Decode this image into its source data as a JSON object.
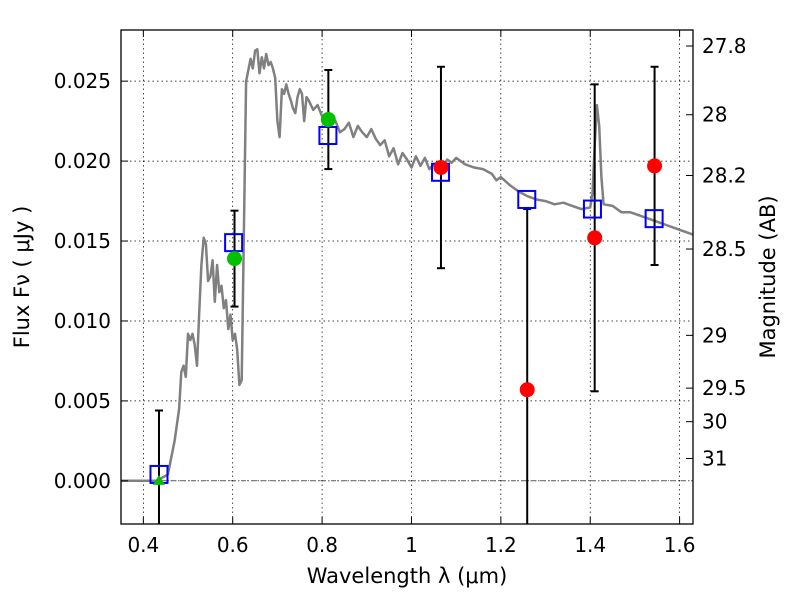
{
  "chart_data": {
    "type": "scatter",
    "xlabel": "Wavelength  λ (μm)",
    "ylabel": "Flux  Fν  ( μJy )",
    "y2label": "Magnitude (AB)",
    "xlim": [
      0.35,
      1.63
    ],
    "ylim": [
      -0.0027,
      0.0282
    ],
    "grid": true,
    "x_ticks": [
      {
        "value": 0.4,
        "label": "0.4"
      },
      {
        "value": 0.6,
        "label": "0.6"
      },
      {
        "value": 0.8,
        "label": "0.8"
      },
      {
        "value": 1.0,
        "label": "1"
      },
      {
        "value": 1.2,
        "label": "1.2"
      },
      {
        "value": 1.4,
        "label": "1.4"
      },
      {
        "value": 1.6,
        "label": "1.6"
      }
    ],
    "y_ticks": [
      {
        "value": 0.0,
        "label": "0.000"
      },
      {
        "value": 0.005,
        "label": "0.005"
      },
      {
        "value": 0.01,
        "label": "0.010"
      },
      {
        "value": 0.015,
        "label": "0.015"
      },
      {
        "value": 0.02,
        "label": "0.020"
      },
      {
        "value": 0.025,
        "label": "0.025"
      }
    ],
    "y2_ticks": [
      {
        "flux": 0.0272,
        "label": "27.8"
      },
      {
        "flux": 0.0229,
        "label": "28"
      },
      {
        "flux": 0.0191,
        "label": "28.2"
      },
      {
        "flux": 0.0145,
        "label": "28.5"
      },
      {
        "flux": 0.0091,
        "label": "29"
      },
      {
        "flux": 0.0058,
        "label": "29.5"
      },
      {
        "flux": 0.0037,
        "label": "30"
      },
      {
        "flux": 0.0014,
        "label": "31"
      }
    ],
    "zero_line": 0.0,
    "series": [
      {
        "kind": "model_spectrum",
        "color": "#808080",
        "points": [
          [
            0.35,
            0.0
          ],
          [
            0.43,
            0.0
          ],
          [
            0.455,
            0.0004
          ],
          [
            0.47,
            0.0025
          ],
          [
            0.48,
            0.0045
          ],
          [
            0.485,
            0.0068
          ],
          [
            0.49,
            0.0072
          ],
          [
            0.495,
            0.0065
          ],
          [
            0.5,
            0.0092
          ],
          [
            0.505,
            0.0088
          ],
          [
            0.51,
            0.0092
          ],
          [
            0.515,
            0.0085
          ],
          [
            0.52,
            0.0072
          ],
          [
            0.525,
            0.0105
          ],
          [
            0.53,
            0.0135
          ],
          [
            0.535,
            0.0152
          ],
          [
            0.54,
            0.0148
          ],
          [
            0.545,
            0.0125
          ],
          [
            0.55,
            0.0128
          ],
          [
            0.555,
            0.0138
          ],
          [
            0.56,
            0.0112
          ],
          [
            0.565,
            0.0135
          ],
          [
            0.57,
            0.0118
          ],
          [
            0.575,
            0.0122
          ],
          [
            0.58,
            0.0108
          ],
          [
            0.585,
            0.0113
          ],
          [
            0.59,
            0.0095
          ],
          [
            0.595,
            0.0104
          ],
          [
            0.6,
            0.0088
          ],
          [
            0.605,
            0.0092
          ],
          [
            0.61,
            0.0082
          ],
          [
            0.615,
            0.006
          ],
          [
            0.62,
            0.0063
          ],
          [
            0.63,
            0.025
          ],
          [
            0.64,
            0.0264
          ],
          [
            0.645,
            0.0258
          ],
          [
            0.65,
            0.0269
          ],
          [
            0.655,
            0.027
          ],
          [
            0.66,
            0.0255
          ],
          [
            0.665,
            0.0265
          ],
          [
            0.67,
            0.0258
          ],
          [
            0.675,
            0.0267
          ],
          [
            0.68,
            0.026
          ],
          [
            0.685,
            0.0262
          ],
          [
            0.69,
            0.0258
          ],
          [
            0.695,
            0.0252
          ],
          [
            0.7,
            0.0225
          ],
          [
            0.705,
            0.0215
          ],
          [
            0.71,
            0.0245
          ],
          [
            0.715,
            0.0242
          ],
          [
            0.72,
            0.0248
          ],
          [
            0.725,
            0.0242
          ],
          [
            0.73,
            0.0238
          ],
          [
            0.735,
            0.0233
          ],
          [
            0.74,
            0.023
          ],
          [
            0.745,
            0.024
          ],
          [
            0.75,
            0.0245
          ],
          [
            0.755,
            0.0242
          ],
          [
            0.76,
            0.0225
          ],
          [
            0.765,
            0.024
          ],
          [
            0.77,
            0.0238
          ],
          [
            0.78,
            0.0232
          ],
          [
            0.79,
            0.0235
          ],
          [
            0.8,
            0.0228
          ],
          [
            0.81,
            0.0226
          ],
          [
            0.82,
            0.0224
          ],
          [
            0.83,
            0.0225
          ],
          [
            0.84,
            0.0218
          ],
          [
            0.85,
            0.022
          ],
          [
            0.86,
            0.0224
          ],
          [
            0.87,
            0.0215
          ],
          [
            0.88,
            0.0222
          ],
          [
            0.89,
            0.0218
          ],
          [
            0.9,
            0.0215
          ],
          [
            0.91,
            0.022
          ],
          [
            0.92,
            0.0214
          ],
          [
            0.93,
            0.021
          ],
          [
            0.94,
            0.0213
          ],
          [
            0.95,
            0.0203
          ],
          [
            0.96,
            0.0208
          ],
          [
            0.97,
            0.0198
          ],
          [
            0.98,
            0.0205
          ],
          [
            0.99,
            0.0201
          ],
          [
            1.0,
            0.0196
          ],
          [
            1.01,
            0.0203
          ],
          [
            1.02,
            0.0197
          ],
          [
            1.03,
            0.0202
          ],
          [
            1.04,
            0.0195
          ],
          [
            1.05,
            0.0198
          ],
          [
            1.06,
            0.0199
          ],
          [
            1.07,
            0.0196
          ],
          [
            1.08,
            0.0201
          ],
          [
            1.09,
            0.0199
          ],
          [
            1.1,
            0.0202
          ],
          [
            1.12,
            0.0198
          ],
          [
            1.14,
            0.0196
          ],
          [
            1.16,
            0.0195
          ],
          [
            1.18,
            0.0192
          ],
          [
            1.19,
            0.0188
          ],
          [
            1.2,
            0.019
          ],
          [
            1.22,
            0.0185
          ],
          [
            1.24,
            0.0181
          ],
          [
            1.26,
            0.0178
          ],
          [
            1.28,
            0.0176
          ],
          [
            1.3,
            0.0175
          ],
          [
            1.32,
            0.0173
          ],
          [
            1.34,
            0.0174
          ],
          [
            1.36,
            0.0172
          ],
          [
            1.38,
            0.017
          ],
          [
            1.4,
            0.0171
          ],
          [
            1.405,
            0.018
          ],
          [
            1.41,
            0.021
          ],
          [
            1.415,
            0.0235
          ],
          [
            1.42,
            0.0222
          ],
          [
            1.425,
            0.019
          ],
          [
            1.43,
            0.0173
          ],
          [
            1.45,
            0.0172
          ],
          [
            1.47,
            0.0168
          ],
          [
            1.49,
            0.0168
          ],
          [
            1.51,
            0.0166
          ],
          [
            1.53,
            0.0164
          ],
          [
            1.55,
            0.0162
          ],
          [
            1.57,
            0.016
          ],
          [
            1.59,
            0.0158
          ],
          [
            1.61,
            0.0156
          ],
          [
            1.63,
            0.0154
          ]
        ]
      },
      {
        "kind": "model_fluxes",
        "marker": "open-square",
        "color": "#0000ff",
        "points": [
          [
            0.435,
            0.0004
          ],
          [
            0.602,
            0.0149
          ],
          [
            0.813,
            0.0216
          ],
          [
            1.065,
            0.0193
          ],
          [
            1.258,
            0.0176
          ],
          [
            1.405,
            0.017
          ],
          [
            1.543,
            0.0164
          ]
        ]
      },
      {
        "kind": "detections",
        "marker": "filled-circle",
        "color": "#00c000",
        "points": [
          {
            "x": 0.604,
            "y": 0.0139,
            "yerr": 0.003
          },
          {
            "x": 0.814,
            "y": 0.0226,
            "yerr": 0.0031
          }
        ]
      },
      {
        "kind": "upper_limit",
        "marker": "filled-triangle",
        "color": "#00c000",
        "points": [
          {
            "x": 0.435,
            "y": 0.0,
            "yerr": 0.0044
          }
        ]
      },
      {
        "kind": "low_significance",
        "marker": "filled-circle",
        "color": "#ff0000",
        "points": [
          {
            "x": 1.066,
            "y": 0.0196,
            "yerr": 0.0063
          },
          {
            "x": 1.259,
            "y": 0.0057,
            "yerr": 0.0113
          },
          {
            "x": 1.41,
            "y": 0.0152,
            "yerr": 0.0096
          },
          {
            "x": 1.544,
            "y": 0.0197,
            "yerr": 0.0062
          }
        ]
      }
    ]
  }
}
